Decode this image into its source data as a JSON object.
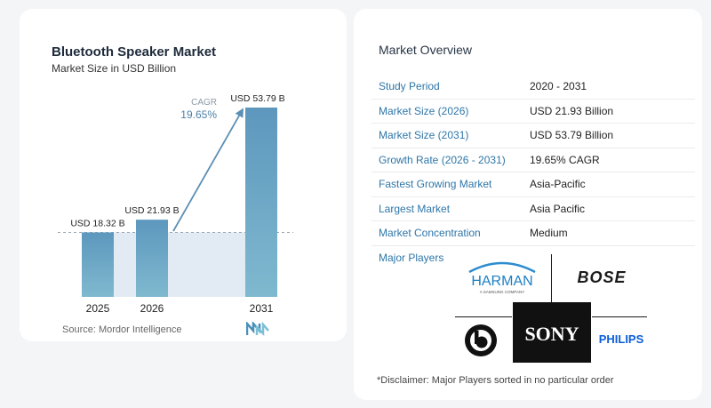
{
  "chart_data": {
    "type": "bar",
    "title": "Bluetooth Speaker Market",
    "subtitle": "Market Size in USD Billion",
    "categories": [
      "2025",
      "2026",
      "2031"
    ],
    "values": [
      18.32,
      21.93,
      53.79
    ],
    "value_labels": [
      "USD 18.32 B",
      "USD 21.93 B",
      "USD 53.79 B"
    ],
    "cagr_label": "CAGR",
    "cagr_value": "19.65%",
    "colors": {
      "bar_top": "#5d97bd",
      "bar_bottom": "#7fb9cf",
      "arrow": "#5b8fb3",
      "band": "#e2ebf3"
    }
  },
  "source": "Source:  Mordor Intelligence",
  "overview": {
    "title": "Market Overview",
    "rows": [
      {
        "key": "Study Period",
        "value": "2020 - 2031"
      },
      {
        "key": "Market Size (2026)",
        "value": "USD 21.93 Billion"
      },
      {
        "key": "Market Size (2031)",
        "value": "USD 53.79 Billion"
      },
      {
        "key": "Growth Rate (2026 - 2031)",
        "value": "19.65% CAGR"
      },
      {
        "key": "Fastest Growing Market",
        "value": "Asia-Pacific"
      },
      {
        "key": "Largest Market",
        "value": "Asia Pacific"
      },
      {
        "key": "Market Concentration",
        "value": "Medium"
      }
    ]
  },
  "players": {
    "title": "Major Players",
    "harman": "HARMAN",
    "harman_sub": "A SAMSUNG COMPANY",
    "bose": "BOSE",
    "sony": "SONY",
    "philips": "PHILIPS"
  },
  "disclaimer": "*Disclaimer: Major Players sorted in no particular order"
}
